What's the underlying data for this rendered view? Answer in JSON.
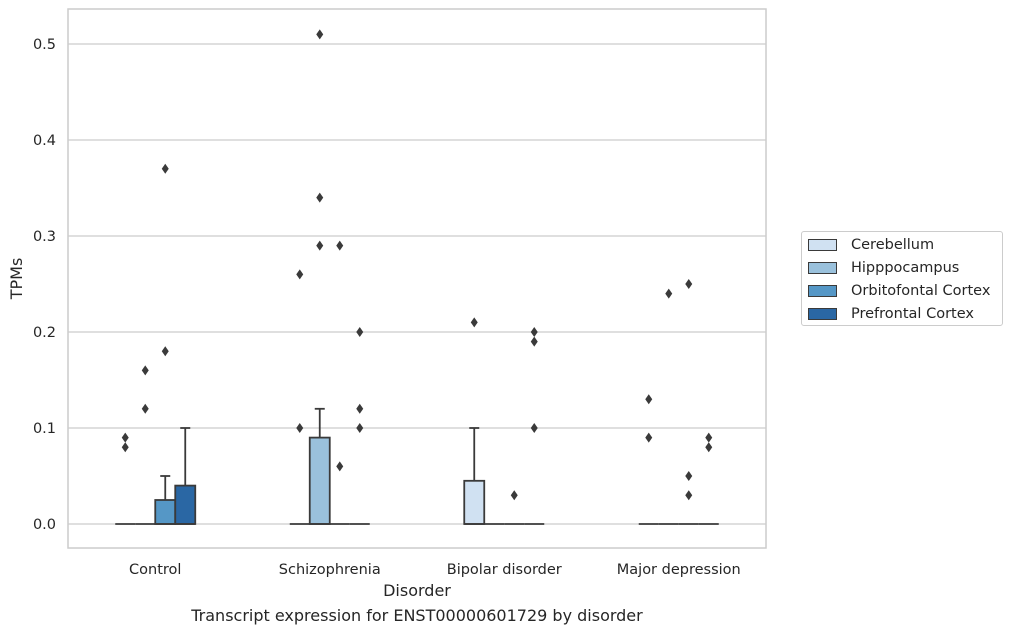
{
  "chart_data": {
    "type": "box",
    "xlabel": "Disorder",
    "ylabel": "TPMs",
    "caption": "Transcript expression for ENST00000601729 by disorder",
    "categories": [
      "Control",
      "Schizophrenia",
      "Bipolar disorder",
      "Major depression"
    ],
    "ylim": [
      -0.025,
      0.535
    ],
    "yticks": [
      0.0,
      0.1,
      0.2,
      0.3,
      0.4,
      0.5
    ],
    "ytick_labels": [
      "0.0",
      "0.1",
      "0.2",
      "0.3",
      "0.4",
      "0.5"
    ],
    "grid": "horizontal",
    "legend_position": "outside right",
    "series": [
      {
        "name": "Cerebellum",
        "color": "#d0e1f2",
        "boxes": [
          {
            "q1": 0,
            "median": 0,
            "q3": 0,
            "whisker_low": 0,
            "whisker_high": 0,
            "outliers": [
              0.08,
              0.09
            ]
          },
          {
            "q1": 0,
            "median": 0,
            "q3": 0,
            "whisker_low": 0,
            "whisker_high": 0,
            "outliers": [
              0.1,
              0.26
            ]
          },
          {
            "q1": 0,
            "median": 0,
            "q3": 0.045,
            "whisker_low": 0,
            "whisker_high": 0.1,
            "outliers": [
              0.21
            ]
          },
          {
            "q1": 0,
            "median": 0,
            "q3": 0,
            "whisker_low": 0,
            "whisker_high": 0,
            "outliers": [
              0.09,
              0.13
            ]
          }
        ]
      },
      {
        "name": "Hipppocampus",
        "color": "#9ac1dc",
        "boxes": [
          {
            "q1": 0,
            "median": 0,
            "q3": 0,
            "whisker_low": 0,
            "whisker_high": 0,
            "outliers": [
              0.12,
              0.16
            ]
          },
          {
            "q1": 0,
            "median": 0,
            "q3": 0.09,
            "whisker_low": 0,
            "whisker_high": 0.12,
            "outliers": [
              0.29,
              0.34,
              0.51
            ]
          },
          {
            "q1": 0,
            "median": 0,
            "q3": 0,
            "whisker_low": 0,
            "whisker_high": 0,
            "outliers": []
          },
          {
            "q1": 0,
            "median": 0,
            "q3": 0,
            "whisker_low": 0,
            "whisker_high": 0,
            "outliers": [
              0.24
            ]
          }
        ]
      },
      {
        "name": "Orbitofontal Cortex",
        "color": "#5597c6",
        "boxes": [
          {
            "q1": 0,
            "median": 0,
            "q3": 0.025,
            "whisker_low": 0,
            "whisker_high": 0.05,
            "outliers": [
              0.18,
              0.37
            ]
          },
          {
            "q1": 0,
            "median": 0,
            "q3": 0,
            "whisker_low": 0,
            "whisker_high": 0,
            "outliers": [
              0.06,
              0.29
            ]
          },
          {
            "q1": 0,
            "median": 0,
            "q3": 0,
            "whisker_low": 0,
            "whisker_high": 0,
            "outliers": [
              0.03
            ]
          },
          {
            "q1": 0,
            "median": 0,
            "q3": 0,
            "whisker_low": 0,
            "whisker_high": 0,
            "outliers": [
              0.03,
              0.05,
              0.25
            ]
          }
        ]
      },
      {
        "name": "Prefrontal Cortex",
        "color": "#2a67a4",
        "boxes": [
          {
            "q1": 0,
            "median": 0,
            "q3": 0.04,
            "whisker_low": 0,
            "whisker_high": 0.1,
            "outliers": []
          },
          {
            "q1": 0,
            "median": 0,
            "q3": 0,
            "whisker_low": 0,
            "whisker_high": 0,
            "outliers": [
              0.1,
              0.12,
              0.2
            ]
          },
          {
            "q1": 0,
            "median": 0,
            "q3": 0,
            "whisker_low": 0,
            "whisker_high": 0,
            "outliers": [
              0.1,
              0.19,
              0.2
            ]
          },
          {
            "q1": 0,
            "median": 0,
            "q3": 0,
            "whisker_low": 0,
            "whisker_high": 0,
            "outliers": [
              0.08,
              0.09
            ]
          }
        ]
      }
    ]
  }
}
